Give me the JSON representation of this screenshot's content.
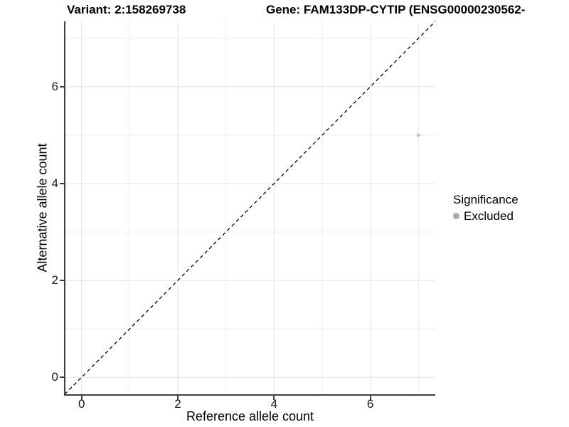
{
  "chart_data": {
    "type": "scatter",
    "title_variant": "Variant: 2:158269738",
    "title_gene": "Gene: FAM133DP-CYTIP (ENSG00000230562-",
    "xlabel": "Reference allele count",
    "ylabel": "Alternative allele count",
    "xlim": [
      -0.35,
      7.35
    ],
    "ylim": [
      -0.35,
      7.35
    ],
    "x_major_ticks": [
      0,
      2,
      4,
      6
    ],
    "x_minor_ticks": [
      1,
      3,
      5,
      7
    ],
    "y_major_ticks": [
      0,
      2,
      4,
      6
    ],
    "y_minor_ticks": [
      1,
      3,
      5,
      7
    ],
    "grid": true,
    "legend": {
      "title": "Significance",
      "position": "right",
      "items": [
        {
          "label": "Excluded",
          "color": "#ABABAB"
        }
      ]
    },
    "series": [
      {
        "name": "Excluded",
        "color": "#C2C2C2",
        "point_radius": 2.5,
        "points": [
          {
            "x": 7,
            "y": 5
          }
        ]
      }
    ],
    "reference_line": {
      "kind": "identity y=x",
      "style": "dashed",
      "color": "#000000",
      "x": [
        -0.35,
        7.35
      ],
      "y": [
        -0.35,
        7.35
      ]
    }
  },
  "colors": {
    "background": "#FFFFFF",
    "grid_major": "#E4E4E4",
    "grid_minor": "#ECECEC",
    "axis_line": "#404040",
    "text": "#000000"
  }
}
